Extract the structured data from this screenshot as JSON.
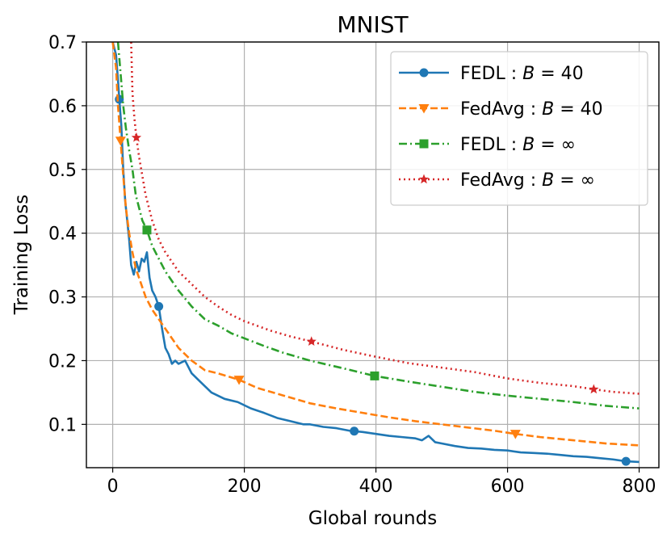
{
  "chart_data": {
    "type": "line",
    "title": "MNIST",
    "xlabel": "Global rounds",
    "ylabel": "Training Loss",
    "xlim": [
      -40,
      830
    ],
    "ylim": [
      0.032,
      0.7
    ],
    "xticks": [
      0,
      200,
      400,
      600,
      800
    ],
    "yticks": [
      0.1,
      0.2,
      0.3,
      0.4,
      0.5,
      0.6,
      0.7
    ],
    "xtick_labels": [
      "0",
      "200",
      "400",
      "600",
      "800"
    ],
    "ytick_labels": [
      "0.1",
      "0.2",
      "0.3",
      "0.4",
      "0.5",
      "0.6",
      "0.7"
    ],
    "grid": true,
    "legend_position": "top-right",
    "series": [
      {
        "name": "FEDL : B = 40",
        "legend_prefix": "FEDL : ",
        "legend_var": "B",
        "legend_rhs": " = 40",
        "color": "#1f77b4",
        "dash": "",
        "marker": "circle",
        "marker_x": [
          10,
          70,
          367,
          780
        ],
        "x": [
          0,
          5,
          8,
          10,
          13,
          16,
          19,
          22,
          25,
          28,
          32,
          36,
          40,
          44,
          48,
          52,
          56,
          60,
          65,
          70,
          75,
          80,
          85,
          90,
          95,
          100,
          110,
          120,
          130,
          140,
          150,
          170,
          190,
          210,
          230,
          250,
          270,
          290,
          300,
          320,
          340,
          360,
          380,
          400,
          420,
          440,
          460,
          470,
          480,
          490,
          500,
          520,
          540,
          560,
          580,
          600,
          620,
          640,
          660,
          680,
          700,
          720,
          740,
          760,
          780,
          800
        ],
        "y": [
          0.7,
          0.68,
          0.64,
          0.61,
          0.57,
          0.5,
          0.45,
          0.42,
          0.39,
          0.35,
          0.335,
          0.355,
          0.34,
          0.36,
          0.355,
          0.37,
          0.33,
          0.31,
          0.3,
          0.285,
          0.25,
          0.22,
          0.21,
          0.195,
          0.2,
          0.195,
          0.2,
          0.18,
          0.17,
          0.16,
          0.15,
          0.14,
          0.135,
          0.125,
          0.118,
          0.11,
          0.105,
          0.1,
          0.1,
          0.096,
          0.094,
          0.09,
          0.088,
          0.085,
          0.082,
          0.08,
          0.078,
          0.075,
          0.082,
          0.072,
          0.07,
          0.066,
          0.063,
          0.062,
          0.06,
          0.059,
          0.056,
          0.055,
          0.054,
          0.052,
          0.05,
          0.049,
          0.047,
          0.045,
          0.042,
          0.041
        ]
      },
      {
        "name": "FedAvg : B = 40",
        "legend_prefix": "FedAvg : ",
        "legend_var": "B",
        "legend_rhs": " = 40",
        "color": "#ff7f0e",
        "dash": "9,4",
        "marker": "triangle-down",
        "marker_x": [
          12,
          192,
          612
        ],
        "x": [
          0,
          5,
          8,
          12,
          16,
          20,
          25,
          30,
          35,
          40,
          50,
          60,
          70,
          80,
          90,
          100,
          120,
          140,
          160,
          192,
          220,
          260,
          300,
          340,
          380,
          420,
          460,
          500,
          540,
          580,
          612,
          650,
          700,
          750,
          800
        ],
        "y": [
          0.7,
          0.66,
          0.6,
          0.545,
          0.49,
          0.44,
          0.4,
          0.37,
          0.345,
          0.33,
          0.3,
          0.28,
          0.265,
          0.25,
          0.235,
          0.22,
          0.2,
          0.185,
          0.18,
          0.17,
          0.157,
          0.145,
          0.133,
          0.125,
          0.118,
          0.111,
          0.105,
          0.1,
          0.095,
          0.09,
          0.085,
          0.08,
          0.075,
          0.07,
          0.067
        ]
      },
      {
        "name": "FEDL : B = ∞",
        "legend_prefix": "FEDL : ",
        "legend_var": "B",
        "legend_rhs": " = ∞",
        "color": "#2ca02c",
        "dash": "10,4,2,4",
        "marker": "square",
        "marker_x": [
          52,
          398
        ],
        "x": [
          8,
          12,
          16,
          20,
          25,
          30,
          35,
          40,
          45,
          52,
          60,
          70,
          80,
          90,
          100,
          120,
          140,
          160,
          180,
          200,
          230,
          260,
          300,
          350,
          398,
          450,
          500,
          550,
          600,
          650,
          700,
          750,
          800
        ],
        "y": [
          0.7,
          0.65,
          0.6,
          0.565,
          0.53,
          0.5,
          0.46,
          0.44,
          0.42,
          0.405,
          0.38,
          0.36,
          0.34,
          0.325,
          0.31,
          0.285,
          0.265,
          0.255,
          0.243,
          0.235,
          0.223,
          0.212,
          0.2,
          0.188,
          0.176,
          0.167,
          0.159,
          0.151,
          0.145,
          0.14,
          0.135,
          0.129,
          0.125
        ]
      },
      {
        "name": "FedAvg : B = ∞",
        "legend_prefix": "FedAvg : ",
        "legend_var": "B",
        "legend_rhs": " = ∞",
        "color": "#d62728",
        "dash": "2,4",
        "marker": "star",
        "marker_x": [
          36,
          302,
          731
        ],
        "x": [
          28,
          30,
          33,
          36,
          40,
          45,
          50,
          55,
          60,
          70,
          80,
          90,
          100,
          120,
          140,
          160,
          180,
          200,
          240,
          270,
          302,
          350,
          400,
          450,
          500,
          550,
          600,
          650,
          700,
          731,
          760,
          800
        ],
        "y": [
          0.7,
          0.62,
          0.58,
          0.55,
          0.52,
          0.49,
          0.46,
          0.44,
          0.42,
          0.39,
          0.37,
          0.355,
          0.34,
          0.32,
          0.3,
          0.285,
          0.272,
          0.262,
          0.247,
          0.238,
          0.23,
          0.217,
          0.206,
          0.196,
          0.189,
          0.182,
          0.172,
          0.165,
          0.16,
          0.155,
          0.151,
          0.148
        ]
      }
    ]
  }
}
